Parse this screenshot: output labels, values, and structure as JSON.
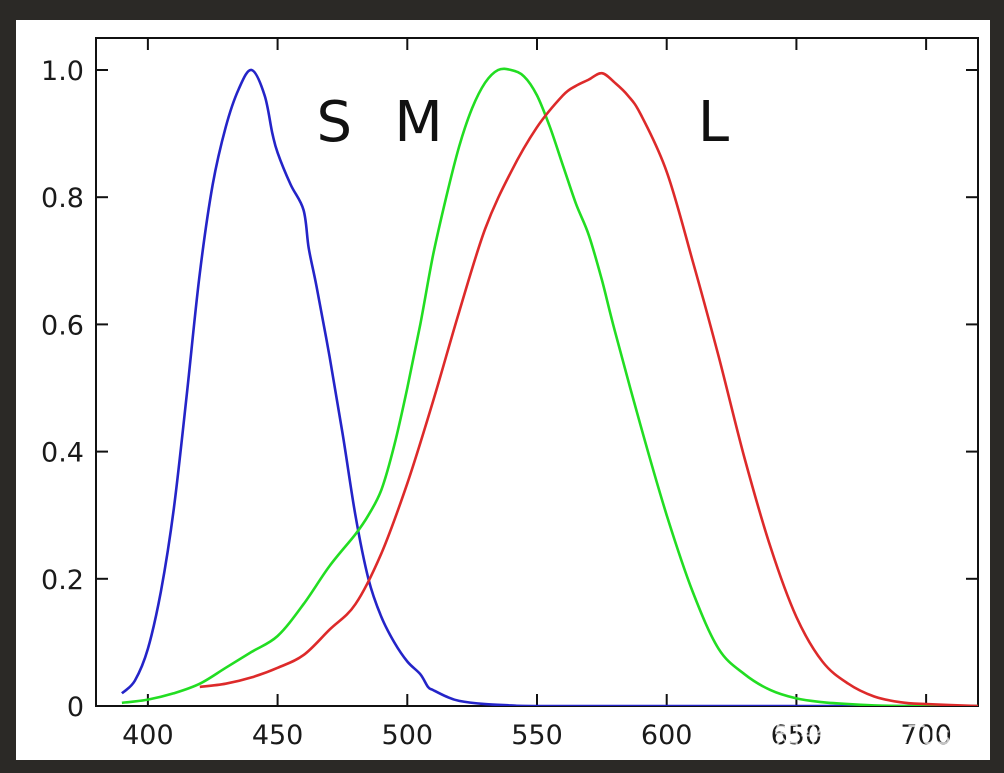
{
  "watermark": "知乎 @TheTus",
  "chart_data": {
    "type": "line",
    "title": "",
    "xlabel": "",
    "ylabel": "",
    "xlim": [
      380,
      720
    ],
    "ylim": [
      0,
      1.05
    ],
    "x_ticks": [
      400,
      450,
      500,
      550,
      600,
      650,
      700
    ],
    "y_ticks": [
      0,
      0.2,
      0.4,
      0.6,
      0.8,
      1.0
    ],
    "y_tick_labels": [
      "0",
      "0.2",
      "0.4",
      "0.6",
      "0.8",
      "1.0"
    ],
    "grid": false,
    "series": [
      {
        "name": "S",
        "color": "#2424c8",
        "label_pos": [
          465,
          0.92
        ],
        "x": [
          390,
          395,
          400,
          405,
          410,
          415,
          420,
          425,
          430,
          435,
          440,
          445,
          448,
          450,
          455,
          460,
          462,
          465,
          470,
          475,
          480,
          485,
          490,
          495,
          500,
          505,
          508,
          510,
          515,
          520,
          530,
          540,
          550,
          600,
          650,
          700,
          720
        ],
        "y": [
          0.02,
          0.04,
          0.09,
          0.18,
          0.31,
          0.49,
          0.68,
          0.82,
          0.91,
          0.97,
          1.0,
          0.96,
          0.9,
          0.87,
          0.82,
          0.78,
          0.72,
          0.66,
          0.55,
          0.43,
          0.3,
          0.2,
          0.14,
          0.1,
          0.07,
          0.05,
          0.03,
          0.025,
          0.015,
          0.008,
          0.003,
          0.001,
          0.0,
          0.0,
          0.0,
          0.0,
          0.0
        ]
      },
      {
        "name": "M",
        "color": "#22dd22",
        "label_pos": [
          495,
          0.92
        ],
        "x": [
          390,
          400,
          410,
          420,
          430,
          440,
          450,
          460,
          470,
          480,
          485,
          490,
          495,
          500,
          505,
          510,
          515,
          520,
          525,
          530,
          535,
          540,
          545,
          550,
          555,
          560,
          565,
          570,
          575,
          580,
          590,
          600,
          610,
          620,
          630,
          640,
          650,
          660,
          670,
          680,
          690,
          700,
          720
        ],
        "y": [
          0.005,
          0.01,
          0.02,
          0.035,
          0.06,
          0.085,
          0.11,
          0.16,
          0.22,
          0.27,
          0.3,
          0.34,
          0.41,
          0.5,
          0.6,
          0.71,
          0.8,
          0.88,
          0.94,
          0.98,
          1.0,
          1.0,
          0.99,
          0.96,
          0.91,
          0.85,
          0.79,
          0.74,
          0.67,
          0.59,
          0.44,
          0.3,
          0.18,
          0.09,
          0.05,
          0.025,
          0.012,
          0.006,
          0.003,
          0.001,
          0.0,
          0.0,
          0.0
        ]
      },
      {
        "name": "L",
        "color": "#dd2a2a",
        "label_pos": [
          612,
          0.92
        ],
        "x": [
          420,
          430,
          440,
          450,
          460,
          470,
          480,
          490,
          500,
          510,
          520,
          530,
          540,
          550,
          560,
          565,
          570,
          575,
          580,
          585,
          590,
          600,
          610,
          620,
          630,
          640,
          650,
          660,
          670,
          680,
          690,
          700,
          720
        ],
        "y": [
          0.03,
          0.035,
          0.045,
          0.06,
          0.08,
          0.12,
          0.16,
          0.24,
          0.35,
          0.48,
          0.62,
          0.75,
          0.84,
          0.91,
          0.96,
          0.975,
          0.985,
          0.995,
          0.98,
          0.96,
          0.93,
          0.84,
          0.7,
          0.55,
          0.39,
          0.25,
          0.14,
          0.07,
          0.035,
          0.015,
          0.006,
          0.003,
          0.0
        ]
      }
    ]
  }
}
